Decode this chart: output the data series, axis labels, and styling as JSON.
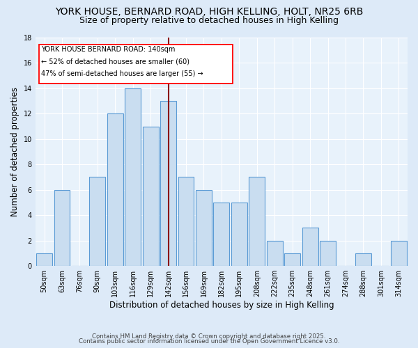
{
  "title": "YORK HOUSE, BERNARD ROAD, HIGH KELLING, HOLT, NR25 6RB",
  "subtitle": "Size of property relative to detached houses in High Kelling",
  "xlabel": "Distribution of detached houses by size in High Kelling",
  "ylabel": "Number of detached properties",
  "categories": [
    "50sqm",
    "63sqm",
    "76sqm",
    "90sqm",
    "103sqm",
    "116sqm",
    "129sqm",
    "142sqm",
    "156sqm",
    "169sqm",
    "182sqm",
    "195sqm",
    "208sqm",
    "222sqm",
    "235sqm",
    "248sqm",
    "261sqm",
    "274sqm",
    "288sqm",
    "301sqm",
    "314sqm"
  ],
  "values": [
    1,
    6,
    0,
    7,
    12,
    14,
    11,
    13,
    7,
    6,
    5,
    5,
    7,
    2,
    1,
    3,
    2,
    0,
    1,
    0,
    2
  ],
  "bar_color": "#c9ddf0",
  "bar_edge_color": "#5b9bd5",
  "vline_idx": 7,
  "vline_color": "#8b0000",
  "annotation_title": "YORK HOUSE BERNARD ROAD: 140sqm",
  "annotation_line1": "← 52% of detached houses are smaller (60)",
  "annotation_line2": "47% of semi-detached houses are larger (55) →",
  "ylim": [
    0,
    18
  ],
  "yticks": [
    0,
    2,
    4,
    6,
    8,
    10,
    12,
    14,
    16,
    18
  ],
  "footer1": "Contains HM Land Registry data © Crown copyright and database right 2025.",
  "footer2": "Contains public sector information licensed under the Open Government Licence v3.0.",
  "background_color": "#ddeaf8",
  "plot_background": "#e8f2fb",
  "title_fontsize": 10,
  "subtitle_fontsize": 9,
  "tick_fontsize": 7,
  "ylabel_fontsize": 8.5,
  "xlabel_fontsize": 8.5
}
